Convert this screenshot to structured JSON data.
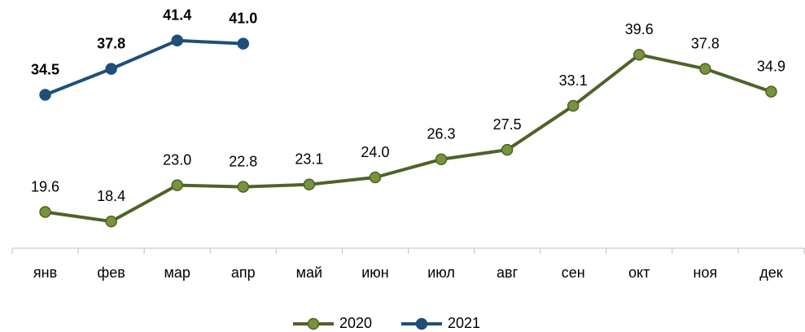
{
  "chart_data": {
    "type": "line",
    "categories": [
      "янв",
      "фев",
      "мар",
      "апр",
      "май",
      "июн",
      "июл",
      "авг",
      "сен",
      "окт",
      "ноя",
      "дек"
    ],
    "series": [
      {
        "name": "2020",
        "color": "#4f6228",
        "marker_color": "#77933c",
        "bold_labels": false,
        "values": [
          19.6,
          18.4,
          23.0,
          22.8,
          23.1,
          24.0,
          26.3,
          27.5,
          33.1,
          39.6,
          37.8,
          34.9
        ],
        "value_labels": [
          "19.6",
          "18.4",
          "23.0",
          "22.8",
          "23.1",
          "24.0",
          "26.3",
          "27.5",
          "33.1",
          "39.6",
          "37.8",
          "34.9"
        ]
      },
      {
        "name": "2021",
        "color": "#1f4e79",
        "marker_color": "#1f4e79",
        "bold_labels": true,
        "values": [
          34.5,
          37.8,
          41.4,
          41.0,
          null,
          null,
          null,
          null,
          null,
          null,
          null,
          null
        ],
        "value_labels": [
          "34.5",
          "37.8",
          "41.4",
          "41.0",
          null,
          null,
          null,
          null,
          null,
          null,
          null,
          null
        ]
      }
    ],
    "ylim": [
      15,
      45
    ],
    "legend": "bottom"
  }
}
